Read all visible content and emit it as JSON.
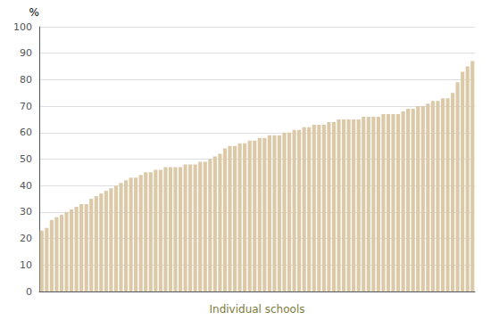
{
  "chart_data": {
    "type": "bar",
    "xlabel": "Individual schools",
    "ylabel": "%",
    "categories": [
      null,
      null,
      null,
      null,
      null,
      null,
      null,
      null,
      null,
      null,
      null,
      null,
      null,
      null,
      null,
      null,
      null,
      null,
      null,
      null,
      null,
      null,
      null,
      null,
      null,
      null,
      null,
      null,
      null,
      null,
      null,
      null,
      null,
      null,
      null,
      null,
      null,
      null,
      null,
      null,
      null,
      null,
      null,
      null,
      null,
      null,
      null,
      null,
      null,
      null,
      null,
      null,
      null,
      null,
      null,
      null,
      null,
      null,
      null,
      null,
      null,
      null,
      null,
      null,
      null,
      null,
      null,
      null,
      null,
      null,
      null,
      null,
      null,
      null,
      null,
      null,
      null,
      null,
      null,
      null,
      null,
      null,
      null,
      null,
      null,
      null,
      null,
      null
    ],
    "values": [
      23,
      24,
      27,
      28,
      29,
      30,
      31,
      32,
      33,
      33,
      35,
      36,
      37,
      38,
      39,
      40,
      41,
      42,
      43,
      43,
      44,
      45,
      45,
      46,
      46,
      47,
      47,
      47,
      47,
      48,
      48,
      48,
      49,
      49,
      50,
      51,
      52,
      54,
      55,
      55,
      56,
      56,
      57,
      57,
      58,
      58,
      59,
      59,
      59,
      60,
      60,
      61,
      61,
      62,
      62,
      63,
      63,
      63,
      64,
      64,
      65,
      65,
      65,
      65,
      65,
      66,
      66,
      66,
      66,
      67,
      67,
      67,
      67,
      68,
      69,
      69,
      70,
      70,
      71,
      72,
      72,
      73,
      73,
      75,
      79,
      83,
      85,
      87
    ],
    "color": "#dcc9a8",
    "ylim": [
      0,
      100
    ],
    "yticks": [
      0,
      10,
      20,
      30,
      40,
      50,
      60,
      70,
      80,
      90,
      100
    ],
    "grid": true,
    "tick_labels": "y"
  }
}
